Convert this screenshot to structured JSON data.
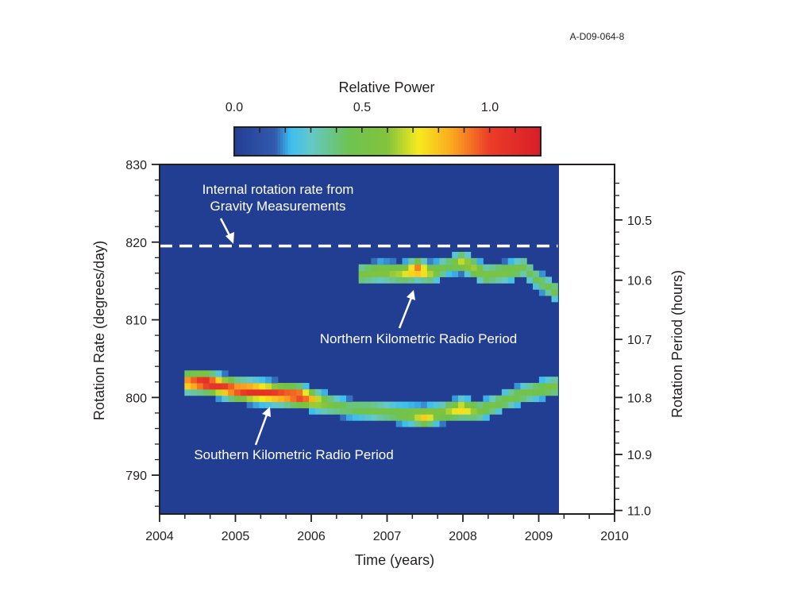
{
  "figure_id": "A-D09-064-8",
  "colorbar": {
    "title": "Relative Power",
    "ticks": [
      "0.0",
      "0.5",
      "1.0"
    ],
    "tick_values": [
      0.0,
      0.5,
      1.0
    ],
    "range": [
      0.0,
      1.2
    ]
  },
  "chart_data": {
    "type": "heatmap",
    "xlabel": "Time (years)",
    "ylabel": "Rotation Rate (degrees/day)",
    "y2label": "Rotation Period (hours)",
    "xlim": [
      2004,
      2010
    ],
    "ylim": [
      785,
      830
    ],
    "data_xmax": 2009.25,
    "x_ticks": [
      "2004",
      "2005",
      "2006",
      "2007",
      "2008",
      "2009",
      "2010"
    ],
    "y_ticks": [
      "830",
      "820",
      "810",
      "800",
      "790"
    ],
    "y_tick_values": [
      830,
      820,
      810,
      800,
      790
    ],
    "y2_ticks": [
      "10.5",
      "10.6",
      "10.7",
      "10.8",
      "10.9",
      "11.0"
    ],
    "y2_tick_values": [
      10.5,
      10.6,
      10.7,
      10.8,
      10.9,
      11.0
    ],
    "reference_line": {
      "y": 819.5,
      "label": "Internal rotation rate from Gravity Measurements"
    },
    "series": [
      {
        "name": "Northern Kilometric Radio Period",
        "x": [
          2006.6,
          2006.9,
          2007.2,
          2007.4,
          2007.6,
          2007.8,
          2008.0,
          2008.3,
          2008.6,
          2008.8,
          2009.0,
          2009.25
        ],
        "y": [
          815.8,
          816.2,
          816.0,
          816.5,
          816.0,
          817.0,
          817.5,
          815.8,
          816.2,
          816.8,
          815.0,
          813.5
        ],
        "power": [
          0.55,
          0.6,
          0.65,
          0.95,
          0.6,
          0.45,
          0.7,
          0.55,
          0.55,
          0.5,
          0.45,
          0.5
        ]
      },
      {
        "name": "Southern Kilometric Radio Period",
        "x": [
          2004.35,
          2004.6,
          2004.8,
          2005.0,
          2005.2,
          2005.45,
          2005.65,
          2005.85,
          2006.1,
          2006.3,
          2006.5,
          2006.8,
          2007.1,
          2007.3,
          2007.5,
          2007.7,
          2008.0,
          2008.2,
          2008.4,
          2008.6,
          2008.8,
          2009.0,
          2009.25
        ],
        "y": [
          802.0,
          802.0,
          801.5,
          801.0,
          800.8,
          800.6,
          800.4,
          800.2,
          799.5,
          799.0,
          798.6,
          798.4,
          798.0,
          797.8,
          797.5,
          798.0,
          798.6,
          798.2,
          799.0,
          799.8,
          800.5,
          801.0,
          801.5
        ],
        "power": [
          0.9,
          1.15,
          1.05,
          1.0,
          1.1,
          1.05,
          1.0,
          1.05,
          0.7,
          0.5,
          0.45,
          0.5,
          0.5,
          0.55,
          0.8,
          0.55,
          0.8,
          0.55,
          0.5,
          0.5,
          0.5,
          0.5,
          0.55
        ]
      }
    ]
  },
  "annotations": {
    "reference_label_line1": "Internal rotation rate from",
    "reference_label_line2": "Gravity Measurements",
    "northern_label": "Northern Kilometric Radio Period",
    "southern_label": "Southern Kilometric Radio Period"
  }
}
